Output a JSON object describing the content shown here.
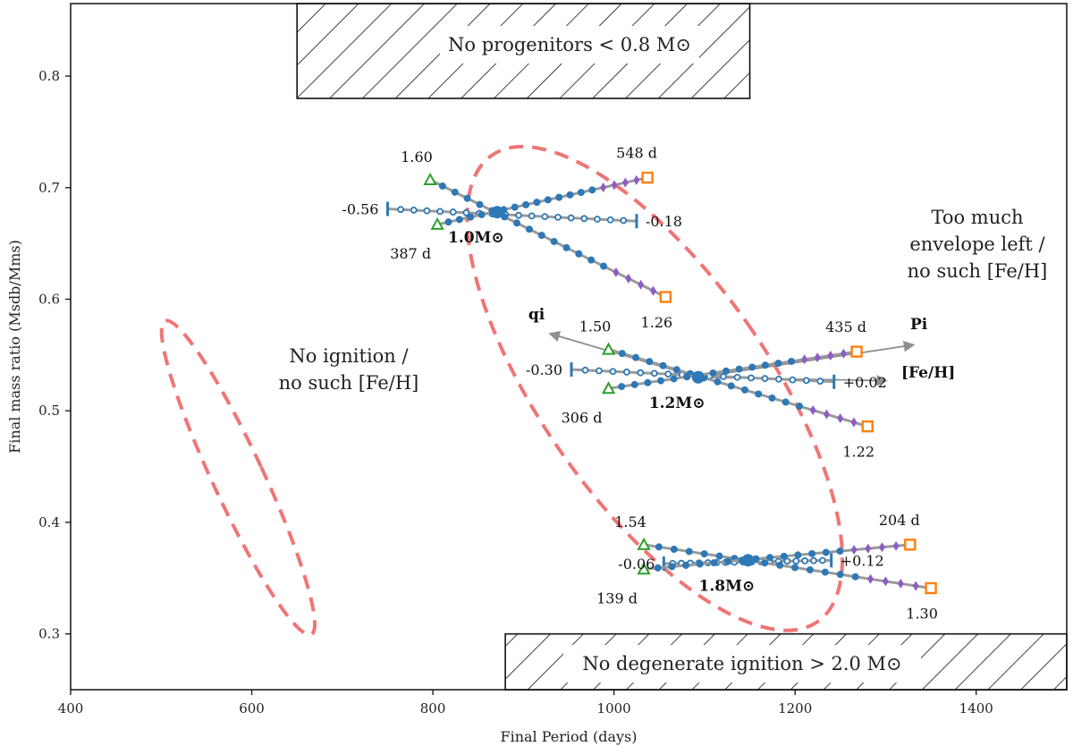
{
  "chart_data": {
    "type": "scatter",
    "xlabel": "Final Period (days)",
    "ylabel": "Final mass ratio (Msdb/Mms)",
    "xlim": [
      400,
      1500
    ],
    "ylim": [
      0.25,
      0.865
    ],
    "xticks": [
      400,
      600,
      800,
      1000,
      1200,
      1400
    ],
    "yticks": [
      0.3,
      0.4,
      0.5,
      0.6,
      0.7,
      0.8
    ],
    "grid": false,
    "colors": {
      "track": "#9a9a9a",
      "point": "#2e78b5",
      "metal_marker": "#8e5cc6",
      "triangle": "#2ca02c",
      "square": "#ff7f0e",
      "ellipse": "#f07575",
      "arrow": "#8f8f8f"
    },
    "forbidden_regions": [
      {
        "label": "No progenitors < 0.8  M⊙",
        "x": [
          650,
          1150
        ],
        "y": [
          0.78,
          0.865
        ]
      },
      {
        "label": "No degenerate ignition > 2.0  M⊙",
        "x": [
          880,
          1500
        ],
        "y": [
          0.25,
          0.3
        ]
      }
    ],
    "regions": [
      {
        "name": "valid-region",
        "center": [
          1045,
          0.52
        ],
        "radii": [
          125,
          0.255
        ],
        "angle_deg": -35
      },
      {
        "name": "no-ignition-region",
        "center": [
          585,
          0.44
        ],
        "radii": [
          28,
          0.155
        ],
        "angle_deg": -25
      }
    ],
    "region_notes": [
      {
        "name": "no-ignition-note",
        "lines": [
          "No ignition /",
          "no such [Fe/H]"
        ]
      },
      {
        "name": "envelope-note",
        "lines": [
          "Too much",
          "envelope left /",
          "no such [Fe/H]"
        ]
      }
    ],
    "models": [
      {
        "name": "1.0",
        "label": "1.0M⊙",
        "center": [
          871,
          0.678
        ],
        "metal_track": {
          "from": [
            750,
            0.681
          ],
          "to": [
            1025,
            0.67
          ],
          "min_label": "-0.56",
          "max_label": "-0.18"
        },
        "period_track": {
          "from": [
            805,
            0.667
          ],
          "to": [
            1037,
            0.709
          ],
          "min_label": "387 d",
          "max_label": "548 d"
        },
        "q_track": {
          "from": [
            797,
            0.707
          ],
          "to": [
            1057,
            0.602
          ],
          "min_label": "1.60",
          "max_label": "1.26"
        }
      },
      {
        "name": "1.2",
        "label": "1.2M⊙",
        "center": [
          1093,
          0.53
        ],
        "metal_track": {
          "from": [
            953,
            0.537
          ],
          "to": [
            1243,
            0.526
          ],
          "min_label": "-0.30",
          "max_label": "+0.02"
        },
        "period_track": {
          "from": [
            994,
            0.52
          ],
          "to": [
            1268,
            0.553
          ],
          "min_label": "306 d",
          "max_label": "435 d"
        },
        "q_track": {
          "from": [
            994,
            0.555
          ],
          "to": [
            1280,
            0.486
          ],
          "min_label": "1.50",
          "max_label": "1.22"
        }
      },
      {
        "name": "1.8",
        "label": "1.8M⊙",
        "center": [
          1148,
          0.366
        ],
        "metal_track": {
          "from": [
            1055,
            0.363
          ],
          "to": [
            1240,
            0.366
          ],
          "min_label": "-0.06",
          "max_label": "+0.12"
        },
        "period_track": {
          "from": [
            1033,
            0.358
          ],
          "to": [
            1327,
            0.38
          ],
          "min_label": "139 d",
          "max_label": "204 d"
        },
        "q_track": {
          "from": [
            1033,
            0.38
          ],
          "to": [
            1350,
            0.341
          ],
          "min_label": "1.54",
          "max_label": "1.30"
        }
      }
    ],
    "parameter_arrows": [
      {
        "name": "q-arrow",
        "label": "qi",
        "from": [
          1093,
          0.53
        ],
        "to": [
          930,
          0.569
        ]
      },
      {
        "name": "p-arrow",
        "label": "Pi",
        "from": [
          1093,
          0.53
        ],
        "to": [
          1330,
          0.559
        ]
      },
      {
        "name": "feh-arrow",
        "label": "[Fe/H]",
        "from": [
          1093,
          0.53
        ],
        "to": [
          1300,
          0.527
        ]
      }
    ]
  }
}
